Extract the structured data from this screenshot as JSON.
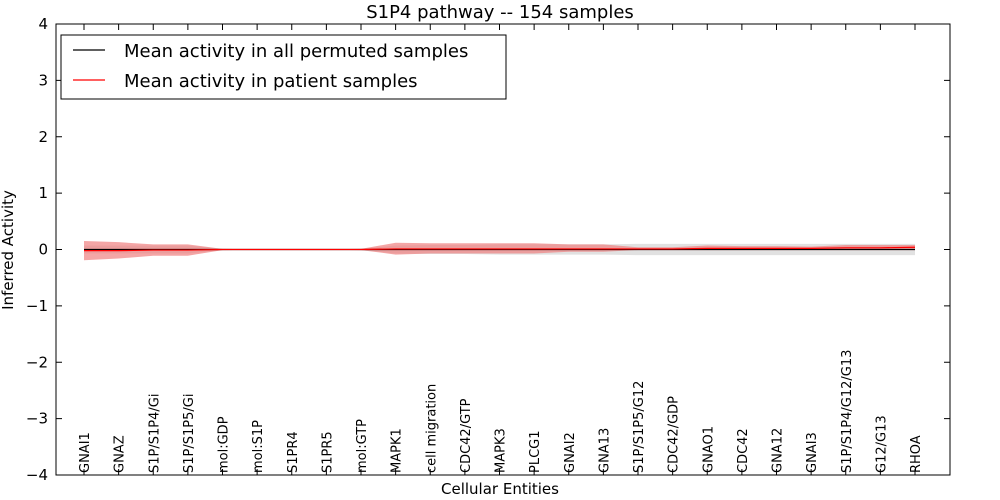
{
  "chart_data": {
    "type": "line",
    "title": "S1P4 pathway -- 154 samples",
    "xlabel": "Cellular Entities",
    "ylabel": "Inferred Activity",
    "ylim": [
      -4,
      4
    ],
    "yticks": [
      4,
      3,
      2,
      1,
      0,
      -1,
      -2,
      -3,
      -4
    ],
    "ytick_labels": [
      "4",
      "3",
      "2",
      "1",
      "0",
      "−1",
      "−2",
      "−3",
      "−4"
    ],
    "categories": [
      "GNAI1",
      "GNAZ",
      "S1P/S1P4/Gi",
      "S1P/S1P5/Gi",
      "mol:GDP",
      "mol:S1P",
      "S1PR4",
      "S1PR5",
      "mol:GTP",
      "MAPK1",
      "cell migration",
      "CDC42/GTP",
      "MAPK3",
      "PLCG1",
      "GNAI2",
      "GNA13",
      "S1P/S1P5/G12",
      "CDC42/GDP",
      "GNAO1",
      "CDC42",
      "GNA12",
      "GNAI3",
      "S1P/S1P4/G12/G13",
      "G12/G13",
      "RHOA"
    ],
    "legend_location": "upper-left",
    "series": [
      {
        "name": "Mean activity in all permuted samples",
        "color": "#000000",
        "values": [
          0,
          0,
          0,
          0,
          0,
          0,
          0,
          0,
          0,
          0,
          0,
          0,
          0,
          0,
          0,
          0,
          0,
          0,
          0,
          0,
          0,
          0,
          0,
          0,
          0
        ],
        "band_upper": [
          0.07,
          0.07,
          0.07,
          0.07,
          0.01,
          0.005,
          0.005,
          0.005,
          0.01,
          0.07,
          0.08,
          0.08,
          0.09,
          0.09,
          0.09,
          0.09,
          0.1,
          0.1,
          0.1,
          0.1,
          0.1,
          0.1,
          0.1,
          0.1,
          0.1
        ],
        "band_lower": [
          -0.07,
          -0.07,
          -0.07,
          -0.07,
          -0.01,
          -0.005,
          -0.005,
          -0.005,
          -0.01,
          -0.07,
          -0.08,
          -0.08,
          -0.09,
          -0.09,
          -0.09,
          -0.09,
          -0.1,
          -0.1,
          -0.1,
          -0.1,
          -0.1,
          -0.1,
          -0.1,
          -0.1,
          -0.1
        ],
        "band_color": "#c8c8c8"
      },
      {
        "name": "Mean activity in patient samples",
        "color": "#ff0000",
        "values": [
          -0.02,
          -0.02,
          -0.01,
          -0.01,
          0,
          0,
          0,
          0,
          0,
          0.01,
          0.01,
          0.01,
          0.01,
          0.01,
          0.01,
          0.01,
          0.01,
          0.01,
          0.02,
          0.02,
          0.02,
          0.02,
          0.03,
          0.03,
          0.04
        ],
        "band_upper": [
          0.15,
          0.13,
          0.09,
          0.09,
          0.01,
          0.005,
          0.005,
          0.005,
          0.01,
          0.12,
          0.11,
          0.11,
          0.11,
          0.11,
          0.09,
          0.09,
          0.04,
          0.04,
          0.07,
          0.06,
          0.06,
          0.05,
          0.08,
          0.08,
          0.08
        ],
        "band_lower": [
          -0.19,
          -0.16,
          -0.11,
          -0.11,
          -0.01,
          -0.005,
          -0.005,
          -0.005,
          -0.01,
          -0.09,
          -0.07,
          -0.07,
          -0.07,
          -0.07,
          -0.04,
          -0.04,
          -0.01,
          -0.01,
          -0.01,
          -0.01,
          -0.01,
          -0.01,
          -0.01,
          -0.01,
          -0.01
        ],
        "band_color": "#f08080"
      }
    ]
  }
}
